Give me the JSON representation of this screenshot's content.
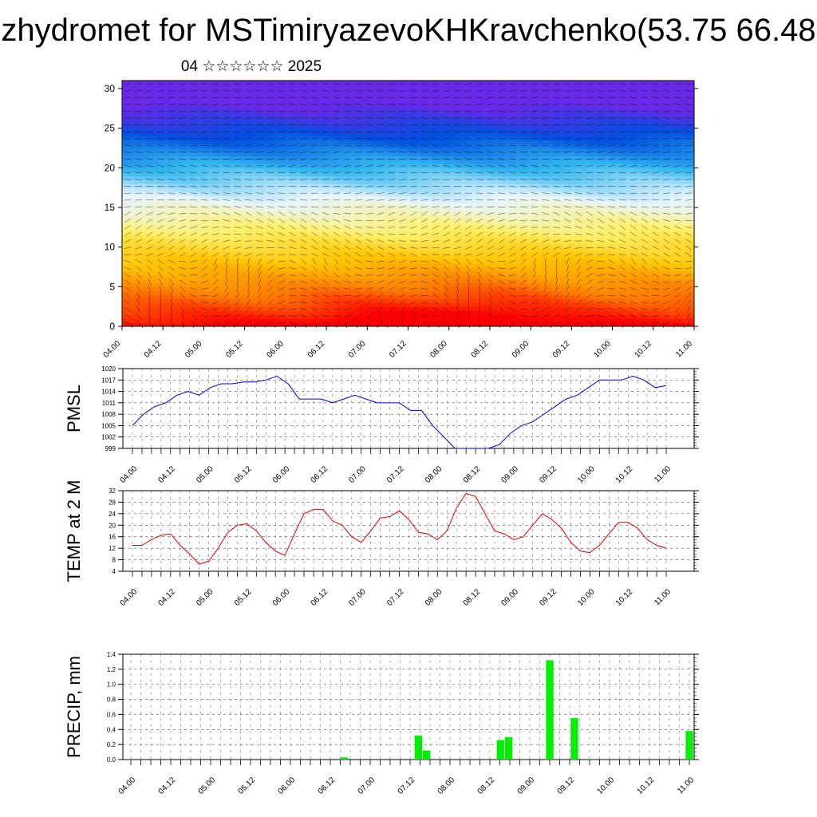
{
  "header": {
    "title": "zhydromet for MSTimiryazevoKHKravchenko(53.75 66.48",
    "subtitle": "04 ☆☆☆☆☆☆ 2025"
  },
  "chart_data": [
    {
      "type": "heatmap",
      "title": "",
      "ylabel": "",
      "ylim": [
        0,
        31
      ],
      "yticks": [
        0,
        5,
        10,
        15,
        20,
        25,
        30
      ],
      "xticks": [
        "04.00",
        "04.12",
        "05.00",
        "05.12",
        "06.00",
        "06.12",
        "07.00",
        "07.12",
        "08.00",
        "08.12",
        "09.00",
        "09.12",
        "10.00",
        "10.12",
        "11.00"
      ],
      "colormap": [
        "#ff0000",
        "#ff7a00",
        "#ffc400",
        "#fff06a",
        "#e8f6ff",
        "#35b8f0",
        "#0050e0",
        "#6a28e8"
      ],
      "overlay": "wind vectors",
      "grid": false
    },
    {
      "type": "line",
      "ylabel": "PMSL",
      "ylim": [
        999,
        1020
      ],
      "yticks": [
        999,
        1002,
        1005,
        1008,
        1011,
        1014,
        1017,
        1020
      ],
      "xticks": [
        "04.00",
        "04.12",
        "05.00",
        "05.12",
        "06.00",
        "06.12",
        "07.00",
        "07.12",
        "08.00",
        "08.12",
        "09.00",
        "09.12",
        "10.00",
        "10.12",
        "11.00"
      ],
      "color": "#0000dd",
      "grid": true,
      "values": [
        1005,
        1008,
        1010,
        1011,
        1013,
        1014,
        1013,
        1015,
        1016,
        1016,
        1016.5,
        1016.5,
        1017,
        1018,
        1016,
        1012,
        1012,
        1012,
        1011,
        1012,
        1013,
        1012,
        1011,
        1011,
        1011,
        1009,
        1009,
        1005,
        1002,
        999,
        999,
        999,
        999,
        1000,
        1003,
        1005,
        1006,
        1008,
        1010,
        1012,
        1013,
        1015,
        1017,
        1017,
        1017,
        1018,
        1017,
        1015,
        1015.5
      ]
    },
    {
      "type": "line",
      "ylabel": "TEMP at 2 M",
      "ylim": [
        4,
        32
      ],
      "yticks": [
        4,
        8,
        12,
        16,
        20,
        24,
        28,
        32
      ],
      "xticks": [
        "04.00",
        "04.12",
        "05.00",
        "05.12",
        "06.00",
        "06.12",
        "07.00",
        "07.12",
        "08.00",
        "08.12",
        "09.00",
        "09.12",
        "10.00",
        "10.12",
        "11.00"
      ],
      "color": "#dd0000",
      "grid": true,
      "values": [
        13,
        13,
        15,
        16.5,
        17,
        13,
        10,
        6.5,
        7.5,
        12,
        17.5,
        20,
        20.5,
        18,
        14,
        11,
        9.5,
        17,
        24,
        25.5,
        25.5,
        21.5,
        20,
        16,
        14,
        18,
        22.5,
        23,
        25,
        22,
        17.5,
        17,
        15,
        18,
        26,
        31,
        30,
        24,
        18,
        17,
        15,
        16,
        20,
        24,
        22,
        19,
        14,
        11,
        10.5,
        13,
        17,
        21,
        21,
        19,
        15,
        13,
        12
      ]
    },
    {
      "type": "bar",
      "ylabel": "PRECIP, mm",
      "ylim": [
        0,
        1.4
      ],
      "yticks": [
        0.0,
        0.2,
        0.4,
        0.6,
        0.8,
        1.0,
        1.2,
        1.4
      ],
      "xticks": [
        "04.00",
        "04.12",
        "05.00",
        "05.12",
        "06.00",
        "06.12",
        "07.00",
        "07.12",
        "08.00",
        "08.12",
        "09.00",
        "09.12",
        "10.00",
        "10.12",
        "11.00"
      ],
      "color": "#00ee00",
      "grid": true,
      "values": [
        0,
        0,
        0,
        0,
        0,
        0,
        0,
        0,
        0,
        0,
        0,
        0,
        0,
        0,
        0,
        0,
        0,
        0,
        0,
        0,
        0,
        0,
        0,
        0,
        0,
        0,
        0.03,
        0,
        0,
        0,
        0,
        0,
        0,
        0,
        0,
        0.32,
        0.12,
        0,
        0,
        0,
        0,
        0,
        0,
        0,
        0,
        0.26,
        0.3,
        0,
        0,
        0,
        0,
        1.32,
        0,
        0,
        0.55,
        0,
        0.01,
        0,
        0,
        0,
        0,
        0,
        0,
        0,
        0,
        0,
        0,
        0,
        0.38
      ]
    }
  ]
}
